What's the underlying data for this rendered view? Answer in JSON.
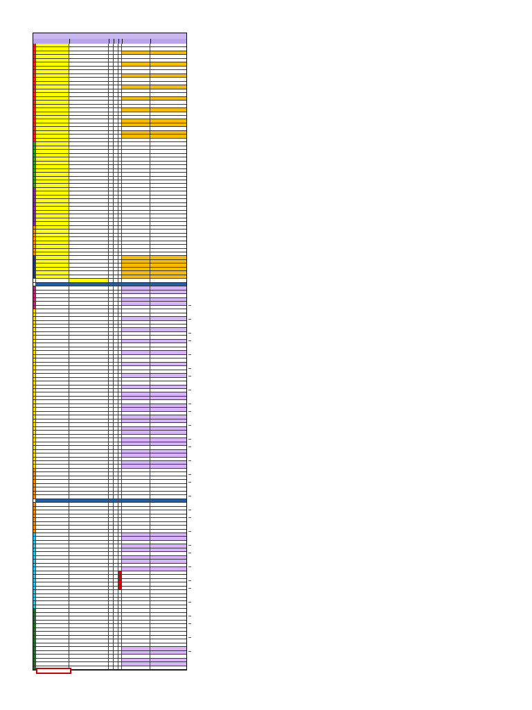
{
  "sheet": {
    "title": "",
    "section_title": "",
    "second_header": ""
  },
  "colors": {
    "header": "#c9b8ef",
    "second_header": "#1f5ea8",
    "yellow": "#ffff00",
    "gold": "#f5bc00",
    "lilac": "#d9b3ff",
    "red": "#e00000",
    "cat_red": "#e0202a",
    "cat_green": "#2e9b28",
    "cat_orange": "#f08a00",
    "cat_yellow": "#ffd800",
    "cat_cyan": "#27c0e8",
    "cat_darkgreen": "#1f6b2a",
    "cat_navy": "#203a78",
    "cat_magenta": "#c02070",
    "cat_purple": "#7a2a9c"
  },
  "blocks": [
    {
      "n": 20,
      "cat": "#e0202a",
      "c1": "#ffff00",
      "c2": "#ffffff",
      "c6": "#ffffff",
      "c7": "#ffffff",
      "alt": "#f5bc00"
    },
    {
      "n": 6,
      "cat": "#e0202a",
      "c1": "#ffff00",
      "c2": "#ffffff",
      "c6": "#f5bc00",
      "c7": "#f5bc00",
      "alt": "#ffffff"
    },
    {
      "n": 12,
      "cat": "#2e9b28",
      "c1": "#ffff00",
      "c2": "#ffffff",
      "c6": "#ffffff",
      "c7": "#ffffff",
      "alt": "#ffffff"
    },
    {
      "n": 10,
      "cat": "#7a2a9c",
      "c1": "#ffff00",
      "c2": "#ffffff",
      "c6": "#ffffff",
      "c7": "#ffffff",
      "alt": "#ffffff"
    },
    {
      "n": 8,
      "cat": "#f08a00",
      "c1": "#ffff00",
      "c2": "#ffffff",
      "c6": "#ffffff",
      "c7": "#ffffff",
      "alt": "#ffffff"
    },
    {
      "n": 6,
      "cat": "#203a78",
      "c1": "#ffff00",
      "c2": "#ffffff",
      "c6": "#f5bc00",
      "c7": "#f5bc00",
      "alt": "#f5bc00"
    },
    {
      "n": 1,
      "cat": "#ffffff",
      "c1": "#ffffff",
      "c2": "#ffff00",
      "c6": "#ffffff",
      "c7": "#ffffff",
      "alt": "#ffffff",
      "special": "subhead"
    },
    {
      "n": 1,
      "cat": "#ffffff",
      "c1": "#1f5ea8",
      "c2": "#1f5ea8",
      "c6": "#1f5ea8",
      "c7": "#1f5ea8",
      "alt": "#1f5ea8",
      "special": "blue"
    },
    {
      "n": 6,
      "cat": "#c02070",
      "c1": "#ffffff",
      "c2": "#ffffff",
      "c6": "#d9b3ff",
      "c7": "#d9b3ff",
      "alt": "#ffffff"
    },
    {
      "n": 22,
      "cat": "#ffd800",
      "c1": "#ffffff",
      "c2": "#ffffff",
      "c6": "#ffffff",
      "c7": "#ffffff",
      "alt": "#d9b3ff"
    },
    {
      "n": 20,
      "cat": "#ffd800",
      "c1": "#ffffff",
      "c2": "#ffffff",
      "c6": "#d9b3ff",
      "c7": "#d9b3ff",
      "alt": "#ffffff"
    },
    {
      "n": 8,
      "cat": "#f08a00",
      "c1": "#ffffff",
      "c2": "#ffffff",
      "c6": "#ffffff",
      "c7": "#ffffff",
      "alt": "#ffffff"
    },
    {
      "n": 1,
      "cat": "#ffffff",
      "c1": "#1f5ea8",
      "c2": "#1f5ea8",
      "c6": "#1f5ea8",
      "c7": "#1f5ea8",
      "alt": "#1f5ea8",
      "special": "blue"
    },
    {
      "n": 8,
      "cat": "#f08a00",
      "c1": "#ffffff",
      "c2": "#ffffff",
      "c6": "#ffffff",
      "c7": "#ffffff",
      "alt": "#ffffff"
    },
    {
      "n": 10,
      "cat": "#27c0e8",
      "c1": "#ffffff",
      "c2": "#ffffff",
      "c6": "#d9b3ff",
      "c7": "#d9b3ff",
      "alt": "#ffffff"
    },
    {
      "n": 10,
      "cat": "#27c0e8",
      "c1": "#ffffff",
      "c2": "#ffffff",
      "c6": "#ffffff",
      "c7": "#ffffff",
      "alt": "#ffffff",
      "red": true
    },
    {
      "n": 10,
      "cat": "#1f6b2a",
      "c1": "#ffffff",
      "c2": "#ffffff",
      "c6": "#ffffff",
      "c7": "#ffffff",
      "alt": "#ffffff"
    },
    {
      "n": 6,
      "cat": "#1f6b2a",
      "c1": "#ffffff",
      "c2": "#ffffff",
      "c6": "#d9b3ff",
      "c7": "#d9b3ff",
      "alt": "#ffffff"
    }
  ]
}
